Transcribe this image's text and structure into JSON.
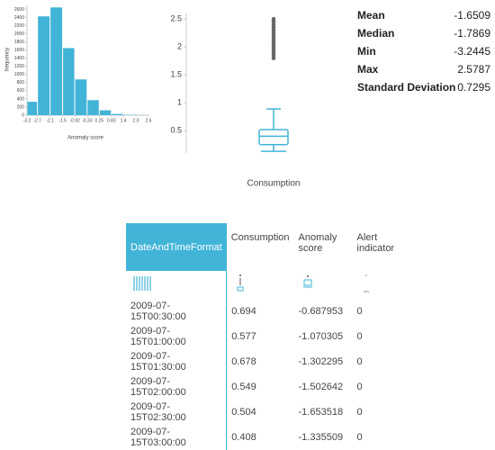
{
  "chart_data": [
    {
      "type": "histogram",
      "xlabel": "Anomaly score",
      "ylabel": "frequency",
      "color": "#42b4d8",
      "bins": [
        -3.2,
        -2.7,
        -2.1,
        -1.5,
        -0.92,
        -0.33,
        0.25,
        0.83,
        1.4,
        2.0,
        2.6
      ],
      "values": [
        330,
        2430,
        2650,
        1650,
        880,
        370,
        120,
        30,
        10,
        5
      ],
      "xlim": [
        -3.2,
        2.6
      ],
      "xticks": [
        -3.2,
        -2.7,
        -2.1,
        -1.5,
        -0.92,
        -0.33,
        0.25,
        0.83,
        1.4,
        {
          "value": 2,
          "label": "2.0"
        },
        2.6
      ],
      "ylim": [
        0,
        2700
      ],
      "yticks": [
        0,
        200,
        400,
        600,
        800,
        1000,
        1200,
        1400,
        1600,
        1800,
        2000,
        2200,
        2400,
        2600
      ]
    },
    {
      "type": "box",
      "xlabel": "Consumption",
      "color": "#42b4d8",
      "whisker_low": 0.13,
      "q1": 0.25,
      "median": 0.4,
      "q3": 0.52,
      "whisker_high": 0.89,
      "outliers": [
        1.8,
        1.85,
        1.9,
        1.95,
        2.0,
        2.05,
        2.1,
        2.15,
        2.2,
        2.25,
        2.3,
        2.35,
        2.4,
        2.45,
        2.5
      ],
      "ylim": [
        0.1,
        2.6
      ],
      "yticks": [
        0.5,
        1,
        1.5,
        2,
        2.5
      ]
    }
  ],
  "stats": [
    {
      "label": "Mean",
      "value": -1.6509
    },
    {
      "label": "Median",
      "value": -1.7869
    },
    {
      "label": "Min",
      "value": -3.2445
    },
    {
      "label": "Max",
      "value": 2.5787
    },
    {
      "label": "Standard Deviation",
      "value": 0.7295
    }
  ],
  "table": {
    "columns": [
      "DateAndTimeFormat",
      "Consumption",
      "Anomaly score",
      "Alert indicator"
    ],
    "rows": [
      [
        "2009-07-15T00:30:00",
        0.694,
        -0.687953,
        0
      ],
      [
        "2009-07-15T01:00:00",
        0.577,
        -1.070305,
        0
      ],
      [
        "2009-07-15T01:30:00",
        0.678,
        -1.302295,
        0
      ],
      [
        "2009-07-15T02:00:00",
        0.549,
        -1.502642,
        0
      ],
      [
        "2009-07-15T02:30:00",
        0.504,
        -1.653518,
        0
      ],
      [
        "2009-07-15T03:00:00",
        0.408,
        -1.335509,
        0
      ]
    ]
  }
}
